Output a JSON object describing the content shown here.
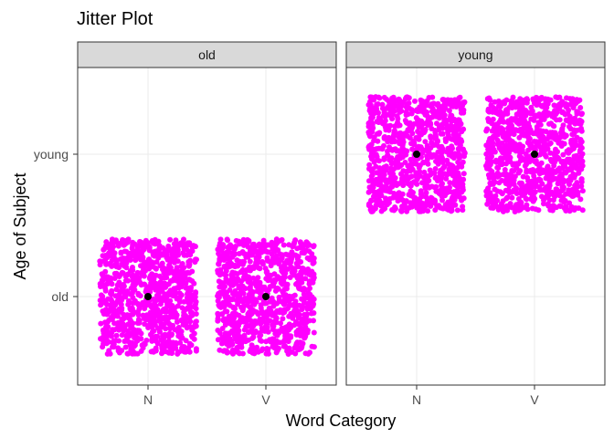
{
  "chart_data": {
    "type": "scatter",
    "subtype": "jitter",
    "title": "Jitter Plot",
    "xlabel": "Word Category",
    "ylabel": "Age of Subject",
    "x_categories": [
      "N",
      "V"
    ],
    "y_categories": [
      "old",
      "young"
    ],
    "facets": [
      "old",
      "young"
    ],
    "grid": true,
    "point_color": "#ff00ff",
    "mean_color": "#000000",
    "panels": [
      {
        "facet": "old",
        "groups": [
          {
            "x": "N",
            "y": "old",
            "mean": {
              "x": "N",
              "y": "old"
            }
          },
          {
            "x": "V",
            "y": "old",
            "mean": {
              "x": "V",
              "y": "old"
            }
          }
        ]
      },
      {
        "facet": "young",
        "groups": [
          {
            "x": "N",
            "y": "young",
            "mean": {
              "x": "N",
              "y": "young"
            }
          },
          {
            "x": "V",
            "y": "young",
            "mean": {
              "x": "V",
              "y": "young"
            }
          }
        ]
      }
    ]
  }
}
